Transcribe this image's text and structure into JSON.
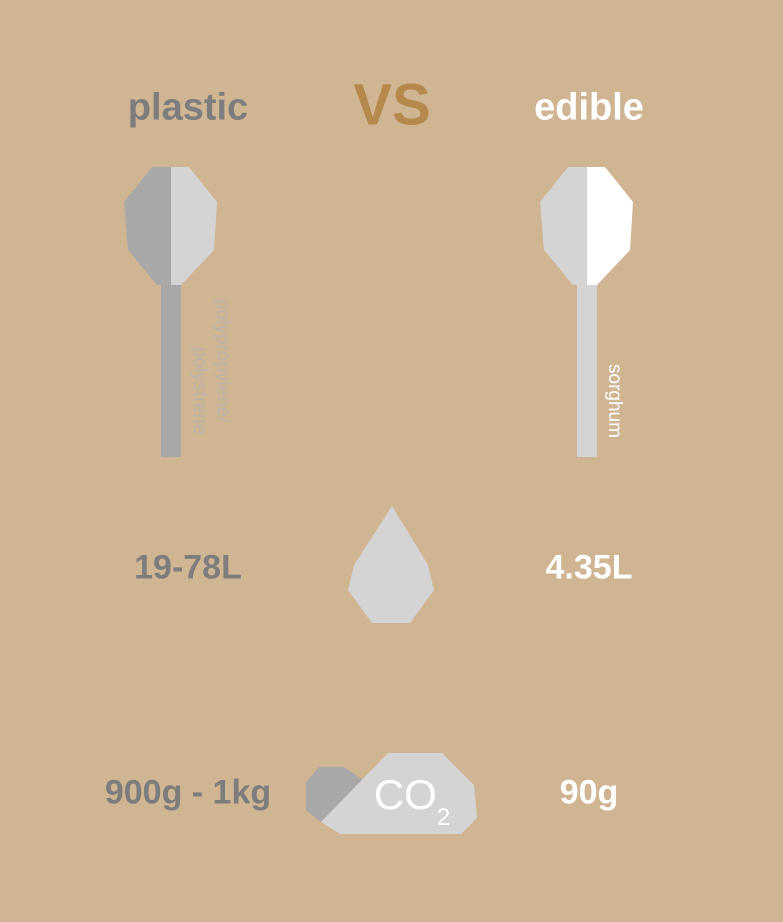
{
  "header": {
    "left": "plastic",
    "middle": "VS",
    "right": "edible"
  },
  "materials": {
    "plastic_line1": "polypropylene/",
    "plastic_line2": "polystrene",
    "edible": "sorghum"
  },
  "water": {
    "plastic": "19-78L",
    "edible": "4.35L",
    "icon": "water-drop-icon"
  },
  "co2": {
    "plastic": "900g - 1kg",
    "edible": "90g",
    "label": "CO",
    "subscript": "2",
    "icon": "cloud-icon"
  },
  "colors": {
    "background": "#d0b592",
    "accent": "#b4894b",
    "plastic_text": "#7d7d7d",
    "edible_text": "#ffffff",
    "dark_gray": "#a8a8a8",
    "light_gray": "#d4d4d4"
  }
}
